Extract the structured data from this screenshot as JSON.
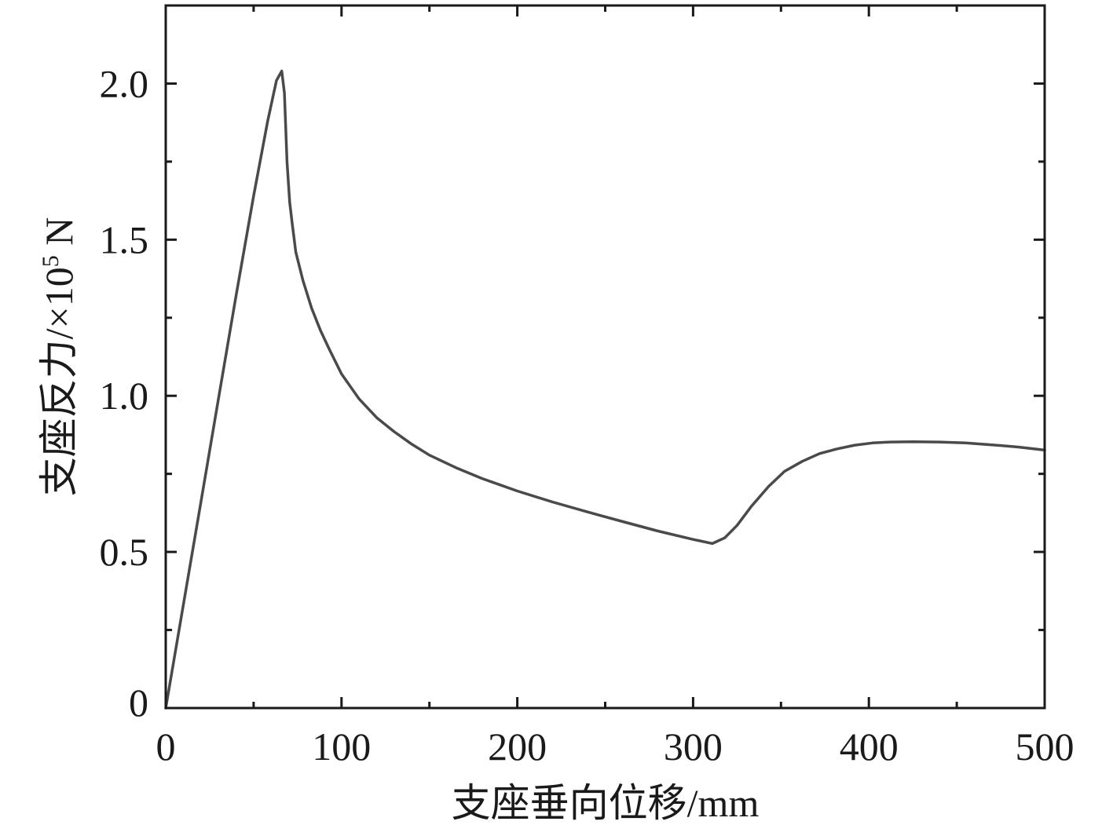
{
  "chart_data": {
    "type": "line",
    "title": "",
    "xlabel": "支座垂向位移/mm",
    "ylabel_main": "支座反力/×10",
    "ylabel_exp": "5",
    "ylabel_unit": " N",
    "xlim": [
      0,
      500
    ],
    "ylim": [
      0,
      2.25
    ],
    "x_ticks": [
      0,
      100,
      200,
      300,
      400,
      500
    ],
    "x_tick_labels": [
      "0",
      "100",
      "200",
      "300",
      "400",
      "500"
    ],
    "y_ticks": [
      0,
      0.5,
      1.0,
      1.5,
      2.0
    ],
    "y_tick_labels": [
      "0",
      "0.5",
      "1.0",
      "1.5",
      "2.0"
    ],
    "y_minor_ticks": [
      0.25,
      0.75,
      1.25,
      1.75
    ],
    "x_minor_ticks": [
      50,
      150,
      250,
      350,
      450
    ],
    "grid": false,
    "line_color": "#4a4a4a",
    "series": [
      {
        "x": [
          0,
          10,
          20,
          30,
          40,
          50,
          58,
          63,
          66,
          67.5,
          69,
          70.5,
          72,
          74,
          78,
          83,
          88,
          93,
          100,
          110,
          120,
          130,
          140,
          150,
          165,
          180,
          200,
          220,
          240,
          260,
          280,
          300,
          311,
          318,
          325,
          333,
          343,
          352,
          362,
          372,
          382,
          392,
          402,
          412,
          425,
          440,
          455,
          470,
          485,
          500
        ],
        "y": [
          0,
          0.33,
          0.66,
          0.99,
          1.32,
          1.64,
          1.88,
          2.01,
          2.04,
          1.97,
          1.75,
          1.62,
          1.55,
          1.46,
          1.37,
          1.28,
          1.21,
          1.15,
          1.07,
          0.99,
          0.93,
          0.885,
          0.845,
          0.81,
          0.77,
          0.735,
          0.695,
          0.66,
          0.628,
          0.597,
          0.567,
          0.54,
          0.527,
          0.545,
          0.585,
          0.645,
          0.71,
          0.758,
          0.79,
          0.815,
          0.83,
          0.842,
          0.849,
          0.852,
          0.853,
          0.852,
          0.849,
          0.843,
          0.836,
          0.826
        ]
      }
    ]
  }
}
